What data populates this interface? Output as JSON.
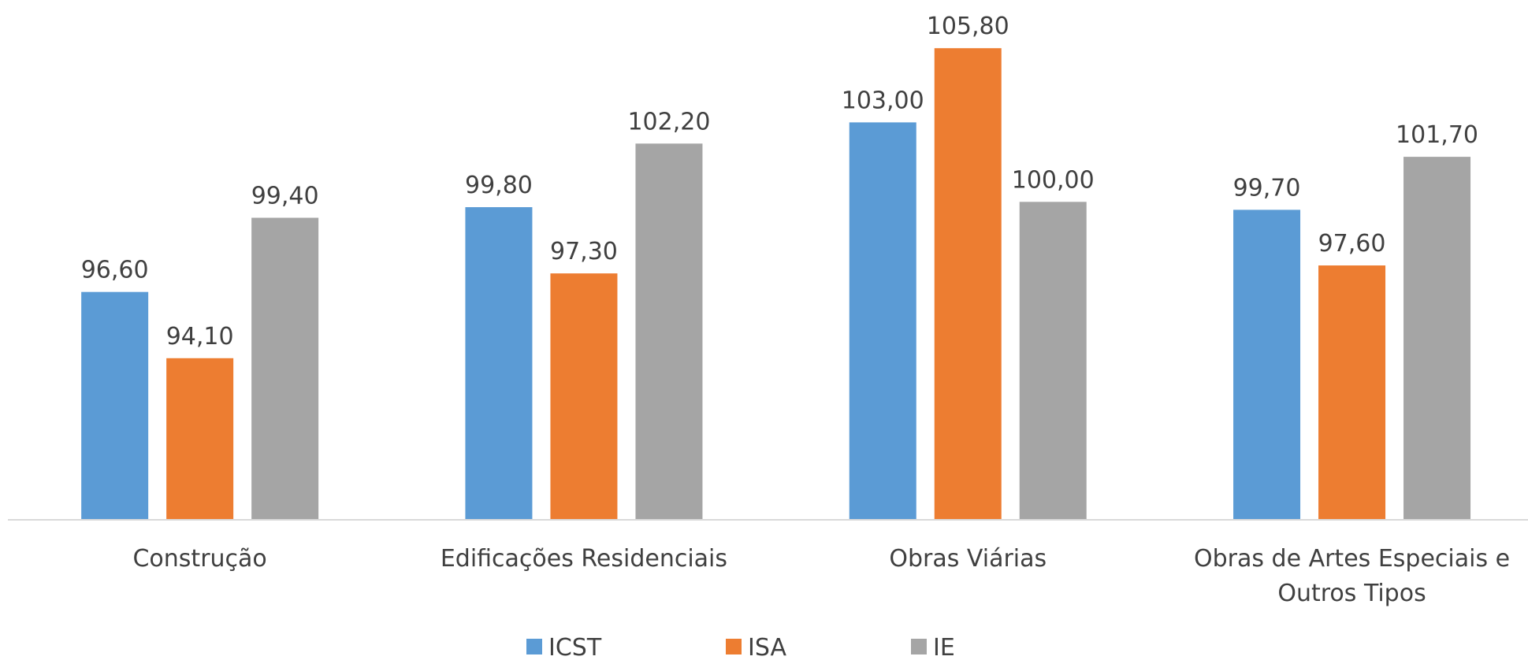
{
  "chart_data": {
    "type": "bar",
    "categories": [
      "Construção",
      "Edificações Residenciais",
      "Obras Viárias",
      "Obras de Artes Especiais e Outros Tipos"
    ],
    "series": [
      {
        "name": "ICST",
        "color": "#5b9bd5",
        "values": [
          96.6,
          99.8,
          103.0,
          99.7
        ],
        "value_labels": [
          "96,60",
          "99,80",
          "103,00",
          "99,70"
        ]
      },
      {
        "name": "ISA",
        "color": "#ed7d31",
        "values": [
          94.1,
          97.3,
          105.8,
          97.6
        ],
        "value_labels": [
          "94,10",
          "97,30",
          "105,80",
          "97,60"
        ]
      },
      {
        "name": "IE",
        "color": "#a5a5a5",
        "values": [
          99.4,
          102.2,
          100.0,
          101.7
        ],
        "value_labels": [
          "99,40",
          "102,20",
          "100,00",
          "101,70"
        ]
      }
    ],
    "ylim": [
      88,
      107.5
    ],
    "legend": "bottom"
  }
}
